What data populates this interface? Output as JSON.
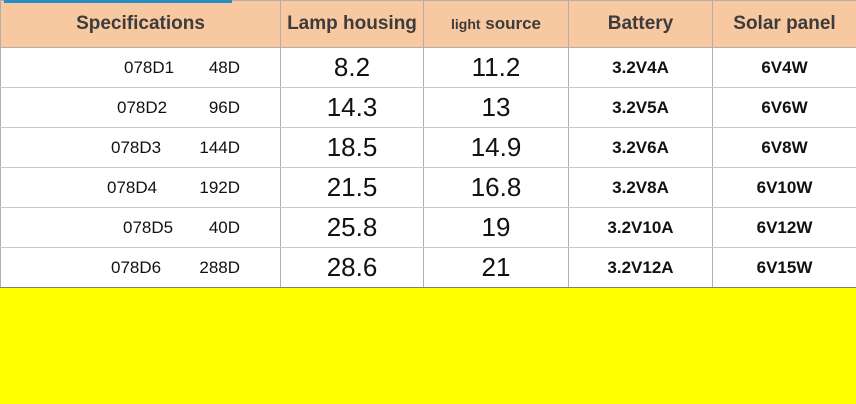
{
  "header": {
    "specifications": "Specifications",
    "lamp_housing": "Lamp housing",
    "light_source_small": "light",
    "light_source_rest": "source",
    "battery": "Battery",
    "solar_panel": "Solar panel"
  },
  "rows": [
    {
      "model": "078D1",
      "pcs": "48D",
      "lamp_housing": "8.2",
      "light_source": "11.2",
      "battery": "3.2V4A",
      "solar_panel": "6V4W"
    },
    {
      "model": "078D2",
      "pcs": "96D",
      "lamp_housing": "14.3",
      "light_source": "13",
      "battery": "3.2V5A",
      "solar_panel": "6V6W"
    },
    {
      "model": "078D3",
      "pcs": "144D",
      "lamp_housing": "18.5",
      "light_source": "14.9",
      "battery": "3.2V6A",
      "solar_panel": "6V8W"
    },
    {
      "model": "078D4",
      "pcs": "192D",
      "lamp_housing": "21.5",
      "light_source": "16.8",
      "battery": "3.2V8A",
      "solar_panel": "6V10W"
    },
    {
      "model": "078D5",
      "pcs": "40D",
      "lamp_housing": "25.8",
      "light_source": "19",
      "battery": "3.2V10A",
      "solar_panel": "6V12W"
    },
    {
      "model": "078D6",
      "pcs": "288D",
      "lamp_housing": "28.6",
      "light_source": "21",
      "battery": "3.2V12A",
      "solar_panel": "6V15W"
    }
  ],
  "colors": {
    "header_bg": "#f8c8a0",
    "filler_bg": "#ffff00",
    "accent": "#2a8fc5"
  }
}
